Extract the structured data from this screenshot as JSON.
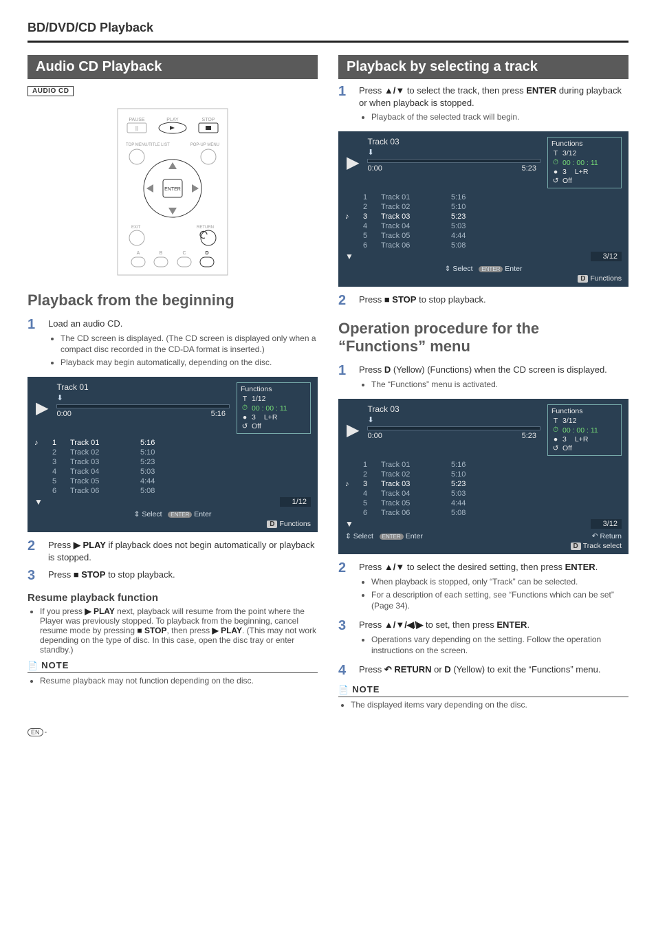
{
  "header": {
    "section": "BD/DVD/CD Playback"
  },
  "left": {
    "heading": "Audio CD Playback",
    "badge": "AUDIO CD",
    "remote": {
      "pause": "PAUSE",
      "play": "PLAY",
      "stop": "STOP",
      "topmenu": "TOP MENU/TITLE LIST",
      "popup": "POP-UP MENU",
      "enter": "ENTER",
      "exit": "EXIT",
      "return": "RETURN",
      "a": "A",
      "b": "B",
      "c": "C",
      "d": "D"
    },
    "sub1": "Playback from the beginning",
    "steps1": [
      {
        "n": "1",
        "text": "Load an audio CD.",
        "bullets": [
          "The CD screen is displayed.\n(The CD screen is displayed only when a compact disc recorded in the CD-DA format is inserted.)",
          "Playback may begin automatically, depending on the disc."
        ]
      }
    ],
    "osd1": {
      "active_index": 0,
      "title": "Track 01",
      "cur": "0:00",
      "dur": "5:16",
      "func": {
        "header": "Functions",
        "track": "1/12",
        "time": "00 : 00 : 11",
        "ch": "3",
        "mode": "L+R",
        "repeat": "Off"
      },
      "tracks": [
        {
          "n": "1",
          "name": "Track 01",
          "d": "5:16"
        },
        {
          "n": "2",
          "name": "Track 02",
          "d": "5:10"
        },
        {
          "n": "3",
          "name": "Track 03",
          "d": "5:23"
        },
        {
          "n": "4",
          "name": "Track 04",
          "d": "5:03"
        },
        {
          "n": "5",
          "name": "Track 05",
          "d": "4:44"
        },
        {
          "n": "6",
          "name": "Track 06",
          "d": "5:08"
        }
      ],
      "page": "1/12",
      "footer_select": "Select",
      "footer_enter": "Enter",
      "badge_d": "D",
      "footer_functions": "Functions"
    },
    "steps2": [
      {
        "n": "2",
        "html": "Press <b>▶ PLAY</b> if playback does not begin automatically or playback is stopped."
      },
      {
        "n": "3",
        "html": "Press <b>■ STOP</b> to stop playback."
      }
    ],
    "resume": {
      "title": "Resume playback function",
      "body": "If you press <b>▶ PLAY</b> next, playback will resume from the point where the Player was previously stopped. To playback from the beginning, cancel resume mode by pressing <b>■ STOP</b>, then press <b>▶ PLAY</b>. (This may not work depending on the type of disc. In this case, open the disc tray or enter standby.)"
    },
    "note": {
      "label": "NOTE",
      "body": "Resume playback may not function depending on the disc."
    }
  },
  "right": {
    "heading": "Playback by selecting a track",
    "steps1": [
      {
        "n": "1",
        "html": "Press <b>▲/▼</b> to select the track, then press <b>ENTER</b> during playback or when playback is stopped.",
        "bullets": [
          "Playback of the selected track will begin."
        ]
      }
    ],
    "osd2": {
      "active_index": 2,
      "title": "Track 03",
      "cur": "0:00",
      "dur": "5:23",
      "func": {
        "header": "Functions",
        "track": "3/12",
        "time": "00 : 00 : 11",
        "ch": "3",
        "mode": "L+R",
        "repeat": "Off"
      },
      "tracks": [
        {
          "n": "1",
          "name": "Track 01",
          "d": "5:16"
        },
        {
          "n": "2",
          "name": "Track 02",
          "d": "5:10"
        },
        {
          "n": "3",
          "name": "Track 03",
          "d": "5:23"
        },
        {
          "n": "4",
          "name": "Track 04",
          "d": "5:03"
        },
        {
          "n": "5",
          "name": "Track 05",
          "d": "4:44"
        },
        {
          "n": "6",
          "name": "Track 06",
          "d": "5:08"
        }
      ],
      "page": "3/12",
      "footer_select": "Select",
      "footer_enter": "Enter",
      "badge_d": "D",
      "footer_functions": "Functions"
    },
    "step_stop": {
      "n": "2",
      "html": "Press <b>■ STOP</b> to stop playback."
    },
    "sub2": "Operation procedure for the “Functions” menu",
    "steps3": [
      {
        "n": "1",
        "html": "Press <b>D</b> (Yellow) (Functions) when the CD screen is displayed.",
        "bullets": [
          "The “Functions” menu is activated."
        ]
      }
    ],
    "osd3": {
      "active_index": 2,
      "title": "Track 03",
      "cur": "0:00",
      "dur": "5:23",
      "func": {
        "header": "Functions",
        "track": "3/12",
        "time": "00 : 00 : 11",
        "ch": "3",
        "mode": "L+R",
        "repeat": "Off"
      },
      "tracks": [
        {
          "n": "1",
          "name": "Track 01",
          "d": "5:16"
        },
        {
          "n": "2",
          "name": "Track 02",
          "d": "5:10"
        },
        {
          "n": "3",
          "name": "Track 03",
          "d": "5:23"
        },
        {
          "n": "4",
          "name": "Track 04",
          "d": "5:03"
        },
        {
          "n": "5",
          "name": "Track 05",
          "d": "4:44"
        },
        {
          "n": "6",
          "name": "Track 06",
          "d": "5:08"
        }
      ],
      "page": "3/12",
      "footer_select": "Select",
      "footer_enter": "Enter",
      "footer_return": "Return",
      "badge_d": "D",
      "footer_track_select": "Track select"
    },
    "steps4": [
      {
        "n": "2",
        "html": "Press <b>▲/▼</b> to select the desired setting, then press <b>ENTER</b>.",
        "bullets": [
          "When playback is stopped, only “Track” can be selected.",
          "For a description of each setting, see “Functions which can be set” (Page 34)."
        ]
      },
      {
        "n": "3",
        "html": "Press <b>▲/▼/◀/▶</b> to set, then press <b>ENTER</b>.",
        "bullets": [
          "Operations vary depending on the setting. Follow the operation instructions on the screen."
        ]
      },
      {
        "n": "4",
        "html": "Press <b>↶ RETURN</b> or <b>D</b> (Yellow) to exit the “Functions” menu."
      }
    ],
    "note": {
      "label": "NOTE",
      "body": "The displayed items vary depending on the disc."
    }
  },
  "page_num": {
    "prefix": "EN",
    "dash": "-"
  },
  "colors": {
    "heading_bg": "#5a5a5a",
    "step_num": "#5a7bb0",
    "osd_bg": "#2a3f52",
    "osd_inactive": "#a8b8c6"
  }
}
